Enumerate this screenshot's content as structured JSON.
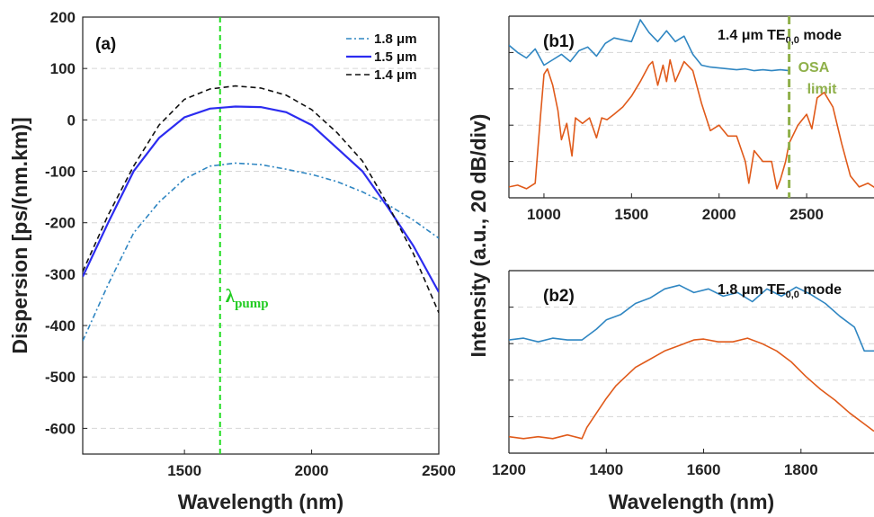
{
  "colors": {
    "blue": "#2c2cf0",
    "teal": "#2f86c2",
    "black": "#111111",
    "green": "#22dd22",
    "orange": "#e05a1a",
    "olive": "#8fb04a",
    "grid": "#d6d6d6"
  },
  "chart_data": [
    {
      "type": "line",
      "panel_label": "(a)",
      "xlabel": "Wavelength (nm)",
      "ylabel": "Dispersion [ps/(nm.km)]",
      "xlim": [
        1100,
        2500
      ],
      "ylim": [
        -650,
        200
      ],
      "xticks": [
        1500,
        2000,
        2500
      ],
      "yticks": [
        200,
        100,
        0,
        -100,
        -200,
        -300,
        -400,
        -500,
        -600
      ],
      "grid": "horizontal dashed",
      "legend_position": "top-right",
      "pump_line": {
        "x": 1640,
        "label_main": "λ",
        "label_sub": "pump"
      },
      "series": [
        {
          "name": "1.8 μm",
          "style": "dash-dot",
          "color": "teal",
          "x": [
            1100,
            1200,
            1300,
            1400,
            1500,
            1600,
            1700,
            1800,
            1900,
            2000,
            2100,
            2200,
            2300,
            2400,
            2500
          ],
          "y": [
            -430,
            -320,
            -220,
            -160,
            -115,
            -90,
            -84,
            -87,
            -96,
            -106,
            -120,
            -140,
            -165,
            -195,
            -230
          ]
        },
        {
          "name": "1.5 μm",
          "style": "solid",
          "color": "blue",
          "x": [
            1100,
            1200,
            1300,
            1400,
            1500,
            1600,
            1700,
            1800,
            1900,
            2000,
            2100,
            2200,
            2300,
            2400,
            2500
          ],
          "y": [
            -305,
            -200,
            -100,
            -35,
            5,
            22,
            26,
            25,
            15,
            -10,
            -55,
            -100,
            -170,
            -245,
            -335
          ]
        },
        {
          "name": "1.4 μm",
          "style": "dashed",
          "color": "black",
          "x": [
            1100,
            1200,
            1300,
            1400,
            1500,
            1600,
            1700,
            1800,
            1900,
            2000,
            2100,
            2200,
            2300,
            2400,
            2500
          ],
          "y": [
            -295,
            -185,
            -90,
            -10,
            40,
            60,
            66,
            62,
            48,
            20,
            -25,
            -80,
            -165,
            -260,
            -375
          ]
        }
      ]
    },
    {
      "type": "line",
      "panel_label": "(b1)",
      "mode_label_main": "1.4 μm TE",
      "mode_label_sub": "0,0",
      "mode_label_tail": " mode",
      "xlim": [
        800,
        2900
      ],
      "ylim": [
        0,
        10
      ],
      "xticks": [
        1000,
        1500,
        2000,
        2500
      ],
      "grid": "horizontal dashed",
      "osa_limit": {
        "x": 2400,
        "label_line1": "OSA",
        "label_line2": "limit"
      },
      "series": [
        {
          "color": "teal",
          "x": [
            800,
            850,
            900,
            950,
            1000,
            1050,
            1100,
            1150,
            1200,
            1250,
            1300,
            1350,
            1400,
            1450,
            1500,
            1550,
            1600,
            1650,
            1700,
            1750,
            1800,
            1850,
            1900,
            1950,
            2000,
            2050,
            2100,
            2150,
            2200,
            2250,
            2300,
            2350,
            2400
          ],
          "y": [
            8.4,
            8.0,
            7.7,
            8.2,
            7.3,
            7.6,
            7.9,
            7.5,
            8.1,
            8.3,
            7.8,
            8.5,
            8.8,
            8.7,
            8.6,
            9.8,
            9.1,
            8.6,
            9.2,
            8.6,
            8.9,
            7.9,
            7.3,
            7.2,
            7.15,
            7.1,
            7.05,
            7.1,
            7.0,
            7.05,
            7.0,
            7.05,
            7.0
          ]
        },
        {
          "color": "orange",
          "x": [
            800,
            850,
            900,
            950,
            980,
            1000,
            1020,
            1050,
            1080,
            1100,
            1130,
            1160,
            1180,
            1220,
            1260,
            1300,
            1330,
            1360,
            1400,
            1450,
            1500,
            1550,
            1600,
            1620,
            1650,
            1680,
            1700,
            1720,
            1750,
            1800,
            1850,
            1900,
            1950,
            2000,
            2050,
            2100,
            2150,
            2170,
            2200,
            2250,
            2300,
            2330,
            2350,
            2380,
            2400,
            2450,
            2500,
            2530,
            2560,
            2600,
            2650,
            2700,
            2750,
            2800,
            2850,
            2900
          ],
          "y": [
            0.6,
            0.7,
            0.5,
            0.8,
            4.5,
            6.8,
            7.1,
            6.2,
            4.8,
            3.2,
            4.1,
            2.3,
            4.4,
            4.1,
            4.4,
            3.3,
            4.4,
            4.3,
            4.6,
            5.0,
            5.6,
            6.4,
            7.3,
            7.5,
            6.2,
            7.3,
            6.4,
            7.6,
            6.4,
            7.5,
            7.0,
            5.2,
            3.7,
            4.0,
            3.4,
            3.4,
            2.0,
            0.8,
            2.6,
            2.0,
            2.0,
            0.5,
            1.0,
            2.0,
            3.0,
            4.0,
            4.6,
            3.8,
            5.5,
            5.8,
            5.0,
            3.0,
            1.2,
            0.6,
            0.8,
            0.5
          ]
        }
      ]
    },
    {
      "type": "line",
      "panel_label": "(b2)",
      "mode_label_main": "1.8 μm TE",
      "mode_label_sub": "0,0",
      "mode_label_tail": " mode",
      "xlabel": "Wavelength (nm)",
      "ylabel": "Intensity (a.u., 20 dB/div)",
      "xlim": [
        1200,
        1950
      ],
      "ylim": [
        0,
        10
      ],
      "xticks": [
        1200,
        1400,
        1600,
        1800
      ],
      "grid": "horizontal dashed",
      "series": [
        {
          "color": "teal",
          "x": [
            1200,
            1230,
            1260,
            1290,
            1320,
            1350,
            1380,
            1400,
            1430,
            1460,
            1490,
            1520,
            1550,
            1580,
            1610,
            1640,
            1670,
            1700,
            1730,
            1760,
            1790,
            1820,
            1850,
            1880,
            1910,
            1930,
            1950
          ],
          "y": [
            6.2,
            6.3,
            6.1,
            6.3,
            6.2,
            6.2,
            6.8,
            7.3,
            7.6,
            8.2,
            8.5,
            9.0,
            9.2,
            8.8,
            9.0,
            8.6,
            8.8,
            8.3,
            9.0,
            8.6,
            9.1,
            8.7,
            8.2,
            7.5,
            6.9,
            5.6,
            5.6
          ]
        },
        {
          "color": "orange",
          "x": [
            1200,
            1230,
            1260,
            1290,
            1320,
            1350,
            1360,
            1380,
            1400,
            1420,
            1440,
            1460,
            1480,
            1500,
            1520,
            1540,
            1560,
            1580,
            1600,
            1630,
            1660,
            1690,
            1720,
            1750,
            1780,
            1810,
            1840,
            1870,
            1900,
            1930,
            1950
          ],
          "y": [
            0.9,
            0.8,
            0.9,
            0.8,
            1.0,
            0.8,
            1.4,
            2.2,
            3.0,
            3.7,
            4.2,
            4.7,
            5.0,
            5.3,
            5.6,
            5.8,
            6.0,
            6.2,
            6.25,
            6.1,
            6.1,
            6.3,
            6.0,
            5.6,
            5.0,
            4.2,
            3.5,
            2.9,
            2.2,
            1.6,
            1.2
          ]
        }
      ]
    }
  ]
}
